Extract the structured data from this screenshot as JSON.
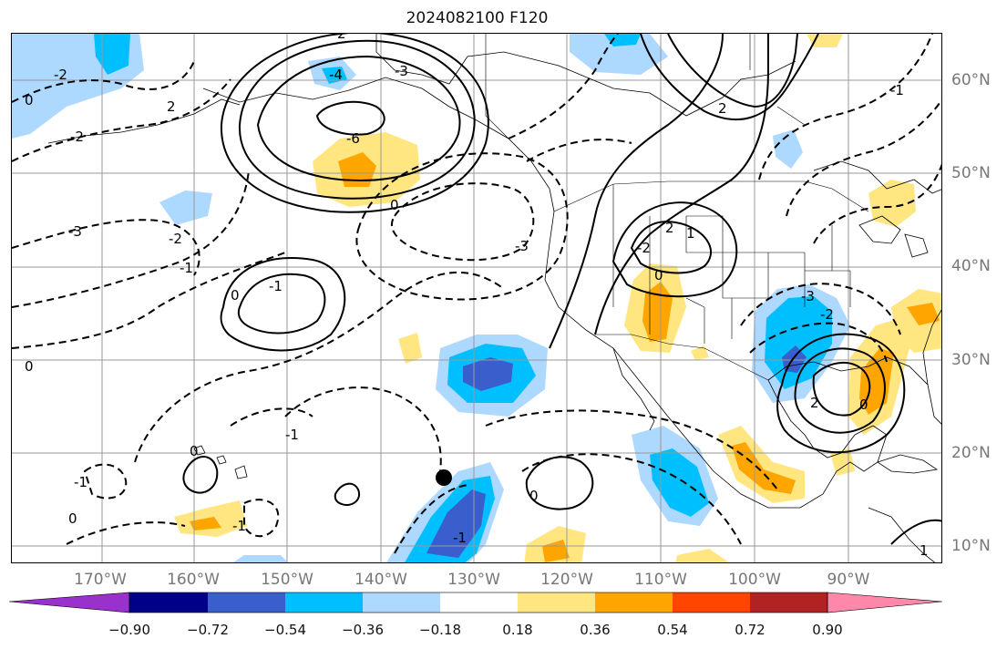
{
  "title": "2024082100 F120",
  "lon_labels": [
    "170°W",
    "160°W",
    "150°W",
    "140°W",
    "130°W",
    "120°W",
    "110°W",
    "100°W",
    "90°W"
  ],
  "lat_labels": [
    "60°N",
    "50°N",
    "40°N",
    "30°N",
    "20°N",
    "10°N"
  ],
  "colorbar": {
    "tick_labels": [
      "−0.90",
      "−0.72",
      "−0.54",
      "−0.36",
      "−0.18",
      "0.18",
      "0.36",
      "0.54",
      "0.72",
      "0.90"
    ],
    "colors": [
      "#9932cc",
      "#00008b",
      "#3a5fcd",
      "#00bfff",
      "#add8ff",
      "#ffffff",
      "#ffe680",
      "#ffa500",
      "#ff4500",
      "#b22222",
      "#ff88aa"
    ]
  },
  "contour_labels": [
    "-2",
    "0",
    "-2",
    "-3",
    "-2",
    "-1",
    "0",
    "0",
    "-1",
    "-1",
    "0",
    "0",
    "-1",
    "-1",
    "2",
    "-4",
    "-3",
    "-6",
    "0",
    "-1",
    "2",
    "0",
    "2",
    "1",
    "2",
    "-2",
    "-3",
    "0",
    "-3",
    "-2",
    "2",
    "0",
    "-1",
    "1"
  ],
  "marker": "filled-circle"
}
